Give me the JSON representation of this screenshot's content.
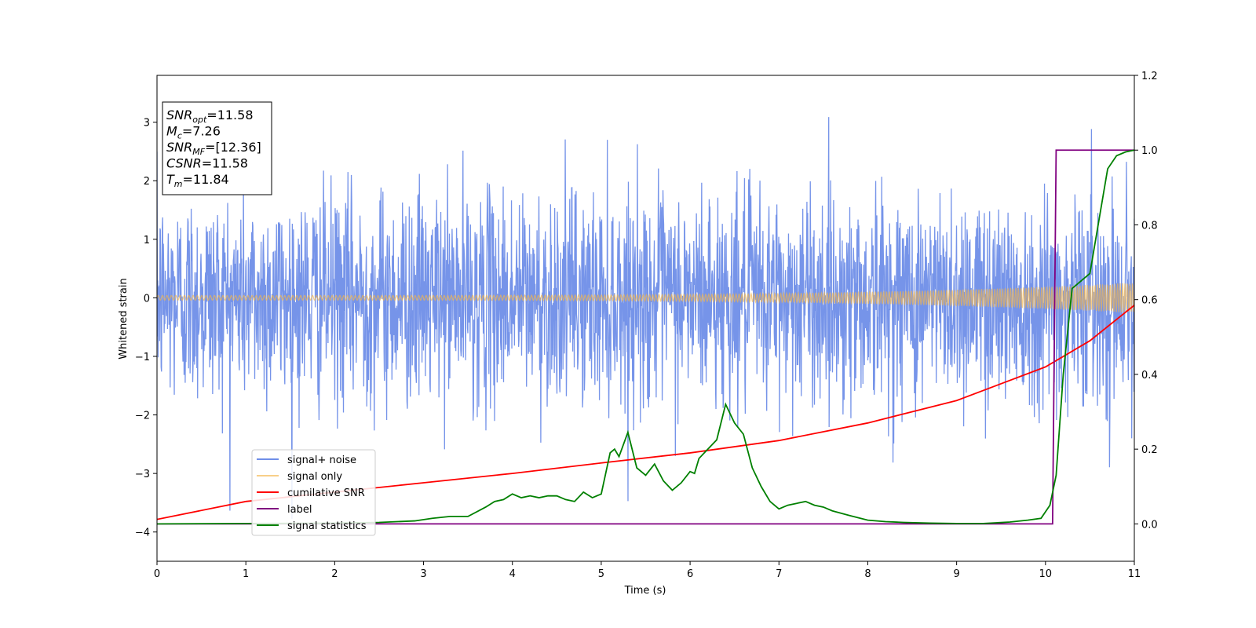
{
  "chart_data": {
    "type": "line",
    "title": "",
    "xlabel": "Time (s)",
    "ylabel": "Whitened strain",
    "xlim": [
      0,
      11
    ],
    "ylim_left": [
      -4.5,
      3.8
    ],
    "ylim_right": [
      -0.1,
      1.2
    ],
    "x_ticks": [
      "0",
      "1",
      "2",
      "3",
      "4",
      "5",
      "6",
      "7",
      "8",
      "9",
      "10",
      "11"
    ],
    "y_ticks_left": [
      "3",
      "2",
      "1",
      "0",
      "−1",
      "−2",
      "−3",
      "−4"
    ],
    "y_ticks_right": [
      "1.2",
      "1.0",
      "0.8",
      "0.6",
      "0.4",
      "0.2",
      "0.0"
    ],
    "grid": false,
    "legend_position": "lower-left",
    "annotation": {
      "lines": [
        {
          "main": "SNR",
          "sub": "opt",
          "value": "=11.58"
        },
        {
          "main": "M",
          "sub": "c",
          "value": "=7.26"
        },
        {
          "main": "SNR",
          "sub": "MF",
          "value": "=[12.36]"
        },
        {
          "main": "CSNR",
          "sub": "",
          "value": "=11.58"
        },
        {
          "main": "T",
          "sub": "m",
          "value": "=11.84"
        }
      ]
    },
    "series": [
      {
        "name": "signal+ noise",
        "axis": "left",
        "color": "#6f8ee8",
        "kind": "noise",
        "std": 0.9,
        "peak_range": [
          -4.15,
          3.4
        ]
      },
      {
        "name": "signal only",
        "axis": "left",
        "color": "#f5b54a",
        "kind": "chirp",
        "amplitude_start": 0.04,
        "amplitude_end": 0.26
      },
      {
        "name": "cumilative SNR",
        "axis": "right",
        "color": "#ff0000",
        "x": [
          0,
          1,
          2,
          3,
          4,
          5,
          6,
          7,
          8,
          9,
          10,
          10.5,
          11
        ],
        "y": [
          0.012,
          0.06,
          0.085,
          0.11,
          0.135,
          0.163,
          0.19,
          0.223,
          0.27,
          0.33,
          0.42,
          0.49,
          0.585
        ]
      },
      {
        "name": "label",
        "axis": "right",
        "color": "#800080",
        "x": [
          0,
          10.08,
          10.12,
          11
        ],
        "y": [
          0.0,
          0.0,
          1.0,
          1.0
        ]
      },
      {
        "name": "signal statistics",
        "axis": "right",
        "color": "#008000",
        "x": [
          0,
          1,
          2,
          2.5,
          2.9,
          3.1,
          3.3,
          3.5,
          3.7,
          3.8,
          3.9,
          4.0,
          4.1,
          4.2,
          4.3,
          4.4,
          4.5,
          4.6,
          4.7,
          4.8,
          4.9,
          5.0,
          5.1,
          5.15,
          5.2,
          5.3,
          5.4,
          5.5,
          5.6,
          5.7,
          5.8,
          5.9,
          6.0,
          6.05,
          6.1,
          6.2,
          6.3,
          6.4,
          6.5,
          6.6,
          6.7,
          6.8,
          6.9,
          7.0,
          7.1,
          7.2,
          7.3,
          7.4,
          7.5,
          7.6,
          7.8,
          8.0,
          8.2,
          8.4,
          8.7,
          9.0,
          9.3,
          9.6,
          9.8,
          9.95,
          10.05,
          10.12,
          10.2,
          10.3,
          10.4,
          10.5,
          10.6,
          10.7,
          10.8,
          10.9,
          11.0
        ],
        "y": [
          0.0,
          0.001,
          0.002,
          0.004,
          0.008,
          0.015,
          0.02,
          0.02,
          0.045,
          0.06,
          0.065,
          0.08,
          0.07,
          0.075,
          0.07,
          0.075,
          0.075,
          0.065,
          0.06,
          0.085,
          0.07,
          0.08,
          0.19,
          0.2,
          0.18,
          0.245,
          0.15,
          0.13,
          0.16,
          0.115,
          0.09,
          0.11,
          0.14,
          0.135,
          0.175,
          0.2,
          0.225,
          0.32,
          0.27,
          0.24,
          0.15,
          0.1,
          0.06,
          0.04,
          0.05,
          0.055,
          0.06,
          0.05,
          0.045,
          0.035,
          0.022,
          0.01,
          0.006,
          0.004,
          0.002,
          0.001,
          0.001,
          0.005,
          0.01,
          0.015,
          0.05,
          0.13,
          0.4,
          0.63,
          0.65,
          0.67,
          0.81,
          0.95,
          0.985,
          0.995,
          1.0
        ]
      }
    ]
  }
}
